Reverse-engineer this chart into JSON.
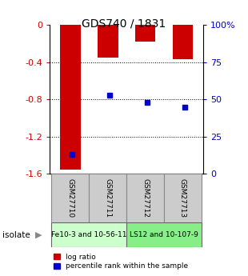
{
  "title": "GDS740 / 1831",
  "samples": [
    "GSM27710",
    "GSM27711",
    "GSM27712",
    "GSM27713"
  ],
  "log_ratios": [
    -1.55,
    -0.35,
    -0.18,
    -0.37
  ],
  "percentile_ranks_pct": [
    13,
    53,
    48,
    45
  ],
  "ylim": [
    -1.6,
    0
  ],
  "yticks_left": [
    0,
    -0.4,
    -0.8,
    -1.2,
    -1.6
  ],
  "yticks_right_labels": [
    "100%",
    "75",
    "50",
    "25",
    "0"
  ],
  "yticks_right_pos": [
    0,
    -0.4,
    -0.8,
    -1.2,
    -1.6
  ],
  "bar_color": "#cc0000",
  "percentile_color": "#0000cc",
  "group1_samples": [
    0,
    1
  ],
  "group2_samples": [
    2,
    3
  ],
  "group1_label": "Fe10-3 and 10-56-11",
  "group2_label": "LS12 and 10-107-9",
  "group1_color": "#ccffcc",
  "group2_color": "#88ee88",
  "isolate_label": "isolate",
  "left_tick_color": "#cc0000",
  "right_tick_color": "#0000cc",
  "bar_width": 0.55
}
